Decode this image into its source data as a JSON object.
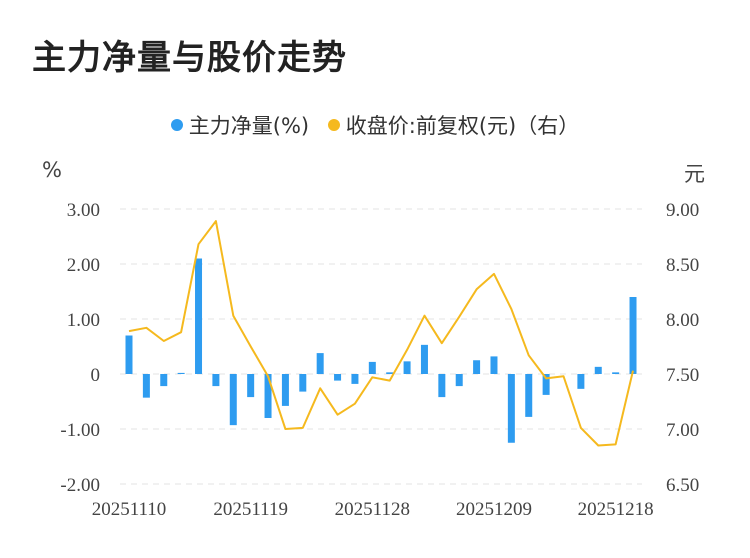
{
  "title": "主力净量与股价走势",
  "legend": {
    "net": "主力净量(%)",
    "price": "收盘价:前复权(元)（右）"
  },
  "units": {
    "left": "%",
    "right": "元"
  },
  "colors": {
    "net": "#2e9cf0",
    "price": "#f5b91e",
    "grid": "#e3e3e3"
  },
  "chart_data": {
    "type": "bar+line",
    "title": "主力净量与股价走势",
    "x_tick_labels": [
      "20251110",
      "20251119",
      "20251128",
      "20251209",
      "20251218"
    ],
    "x_tick_indices": [
      0,
      7,
      14,
      21,
      28
    ],
    "left_axis": {
      "label": "%",
      "ylim": [
        -2,
        3
      ],
      "ticks": [
        "-2.00",
        "-1.00",
        "0",
        "1.00",
        "2.00",
        "3.00"
      ],
      "tick_values": [
        -2,
        -1,
        0,
        1,
        2,
        3
      ]
    },
    "right_axis": {
      "label": "元",
      "ylim": [
        6.5,
        9.0
      ],
      "ticks": [
        "6.50",
        "7.00",
        "7.50",
        "8.00",
        "8.50",
        "9.00"
      ],
      "tick_values": [
        6.5,
        7.0,
        7.5,
        8.0,
        8.5,
        9.0
      ]
    },
    "series": [
      {
        "name": "主力净量(%)",
        "kind": "bar",
        "axis": "left",
        "values": [
          0.7,
          -0.43,
          -0.22,
          0.02,
          2.1,
          -0.22,
          -0.93,
          -0.42,
          -0.8,
          -0.58,
          -0.32,
          0.38,
          -0.12,
          -0.18,
          0.22,
          0.03,
          0.23,
          0.53,
          -0.42,
          -0.22,
          0.25,
          0.32,
          -1.25,
          -0.78,
          -0.38,
          0.0,
          -0.27,
          0.13,
          0.03,
          1.4
        ]
      },
      {
        "name": "收盘价:前复权(元)（右）",
        "kind": "line",
        "axis": "right",
        "values": [
          7.89,
          7.92,
          7.8,
          7.88,
          8.68,
          8.89,
          8.03,
          7.75,
          7.48,
          7.0,
          7.01,
          7.37,
          7.13,
          7.23,
          7.47,
          7.44,
          7.72,
          8.03,
          7.78,
          8.02,
          8.27,
          8.41,
          8.09,
          7.67,
          7.46,
          7.48,
          7.01,
          6.85,
          6.86,
          7.53
        ]
      }
    ],
    "grid": true,
    "legend_position": "top-center"
  }
}
